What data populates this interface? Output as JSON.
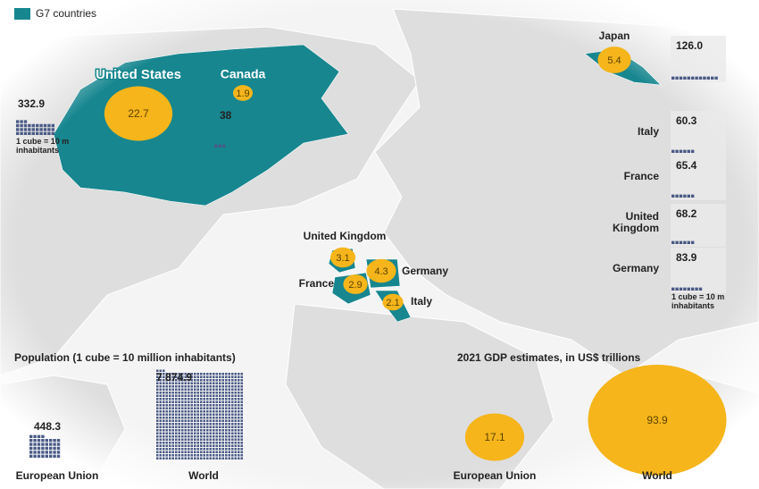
{
  "legend": {
    "label": "G7 countries",
    "color": "#17868f"
  },
  "countries": [
    {
      "name": "United States",
      "gdp": 22.7,
      "population": 332.9
    },
    {
      "name": "Canada",
      "gdp": 1.9,
      "population": 38
    },
    {
      "name": "Japan",
      "gdp": 5.4,
      "population": {
        "value": 126.0,
        "label": "126.0"
      }
    },
    {
      "name": "Italy",
      "gdp": 2.1,
      "population": 60.3
    },
    {
      "name": "France",
      "gdp": 2.9,
      "population": 65.4
    },
    {
      "name": "United Kingdom",
      "gdp": 3.1,
      "population": 68.2
    },
    {
      "name": "Germany",
      "gdp": 4.3,
      "population": 83.9
    }
  ],
  "notes": [
    "1 cube = 10 m inhabitants",
    "1 cube = 10 m inhabitants"
  ],
  "totals": {
    "population_title": "Population (1 cube = 10 million inhabitants)",
    "gdp_title": "2021 GDP estimates, in US$ trillions",
    "items": [
      {
        "name": "European Union",
        "gdp": 17.1,
        "population": 448.3
      },
      {
        "name": "World",
        "gdp": 93.9,
        "population": {
          "value": 7874.9,
          "label": "7 874.9"
        }
      }
    ]
  },
  "bubble_color": "#f5b51b",
  "cube_color": "#4a5a86"
}
